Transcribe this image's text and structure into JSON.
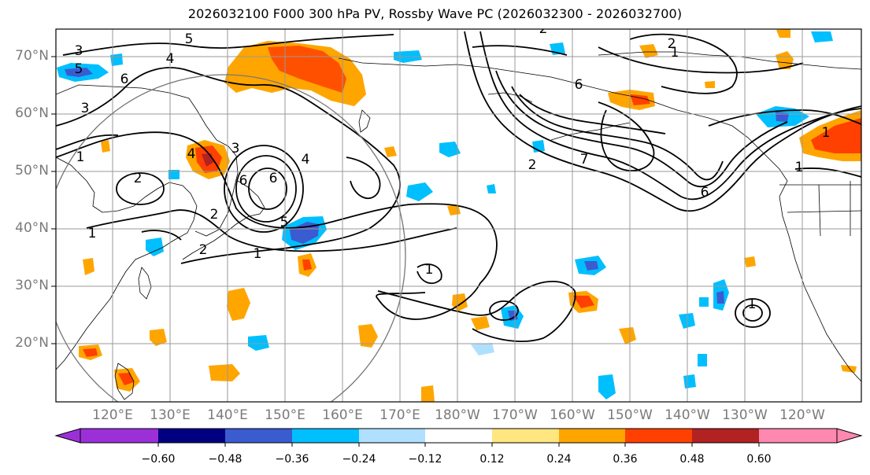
{
  "title": "2026032100 F000 300 hPa PV, Rossby Wave PC (2026032300 - 2026032700)",
  "lat_labels": [
    "70°N",
    "60°N",
    "50°N",
    "40°N",
    "30°N",
    "20°N"
  ],
  "lon_labels": [
    "120°E",
    "130°E",
    "140°E",
    "150°E",
    "160°E",
    "170°E",
    "180°W",
    "170°W",
    "160°W",
    "150°W",
    "140°W",
    "130°W",
    "120°W"
  ],
  "colorbar": {
    "ticks": [
      "−0.60",
      "−0.48",
      "−0.36",
      "−0.24",
      "−0.12",
      "0.12",
      "0.24",
      "0.36",
      "0.48",
      "0.60"
    ],
    "colors": [
      "#9b30d9",
      "#000080",
      "#3b5bd1",
      "#00bfff",
      "#b0e0ff",
      "#ffffff",
      "#ffe680",
      "#ffa500",
      "#ff4000",
      "#b22222",
      "#ff88b0"
    ]
  },
  "contour_labels": [
    "3",
    "5",
    "4",
    "6",
    "3",
    "1",
    "2",
    "1",
    "4",
    "6",
    "5",
    "1",
    "2",
    "2",
    "4",
    "5",
    "6",
    "3",
    "2",
    "1",
    "2",
    "1",
    "6",
    "7",
    "2",
    "1",
    "1",
    "6",
    "1"
  ]
}
